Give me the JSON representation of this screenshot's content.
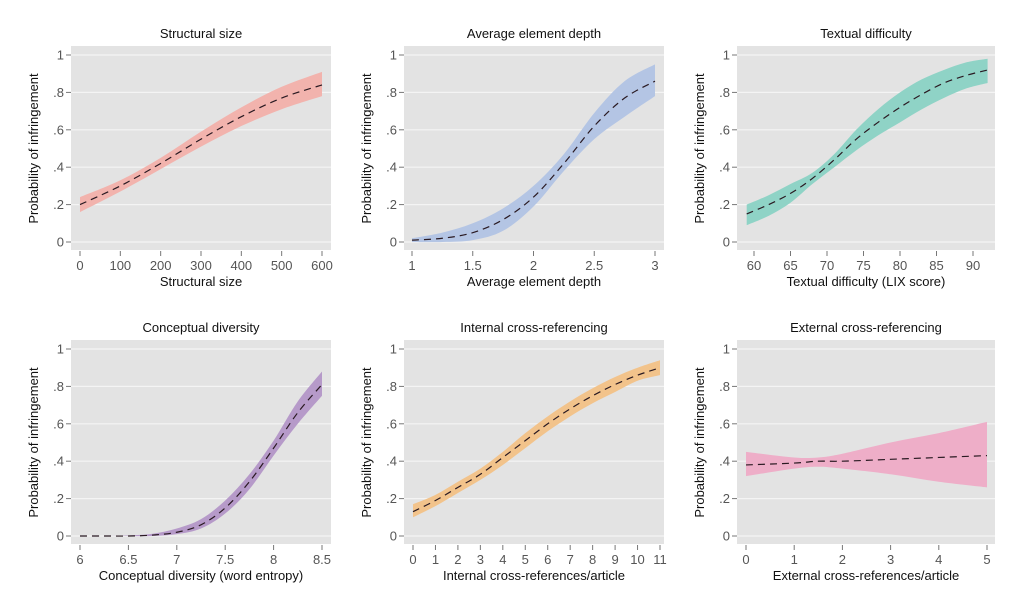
{
  "figure": {
    "ylabel": "Probability of infringement"
  },
  "chart_data": [
    {
      "type": "area",
      "title": "Structural size",
      "xlabel": "Structural size",
      "ylabel": "Probability of infringement",
      "xlim": [
        0,
        600
      ],
      "ylim": [
        0,
        1
      ],
      "xticks": [
        0,
        100,
        200,
        300,
        400,
        500,
        600
      ],
      "xtick_labels": [
        "0",
        "100",
        "200",
        "300",
        "400",
        "500",
        "600"
      ],
      "yticks": [
        0,
        0.2,
        0.4,
        0.6,
        0.8,
        1
      ],
      "ytick_labels": [
        "0",
        ".2",
        ".4",
        ".6",
        ".8",
        "1"
      ],
      "grid": true,
      "band_color": "#f2b3ad",
      "x": [
        0,
        100,
        200,
        300,
        400,
        500,
        600
      ],
      "estimate": [
        0.2,
        0.3,
        0.42,
        0.55,
        0.67,
        0.77,
        0.84
      ],
      "ci_lower": [
        0.16,
        0.27,
        0.39,
        0.51,
        0.62,
        0.71,
        0.78
      ],
      "ci_upper": [
        0.24,
        0.33,
        0.45,
        0.59,
        0.72,
        0.83,
        0.91
      ]
    },
    {
      "type": "area",
      "title": "Average element depth",
      "xlabel": "Average element depth",
      "ylabel": "Probability of infringement",
      "xlim": [
        1,
        3
      ],
      "ylim": [
        0,
        1
      ],
      "xticks": [
        1,
        1.5,
        2,
        2.5,
        3
      ],
      "xtick_labels": [
        "1",
        "1.5",
        "2",
        "2.5",
        "3"
      ],
      "yticks": [
        0,
        0.2,
        0.4,
        0.6,
        0.8,
        1
      ],
      "ytick_labels": [
        "0",
        ".2",
        ".4",
        ".6",
        ".8",
        "1"
      ],
      "grid": true,
      "band_color": "#b4c5e4",
      "x": [
        1,
        1.25,
        1.5,
        1.75,
        2,
        2.25,
        2.5,
        2.75,
        3
      ],
      "estimate": [
        0.01,
        0.02,
        0.05,
        0.12,
        0.24,
        0.42,
        0.62,
        0.77,
        0.86
      ],
      "ci_lower": [
        0.0,
        0.0,
        0.01,
        0.06,
        0.19,
        0.38,
        0.55,
        0.67,
        0.78
      ],
      "ci_upper": [
        0.02,
        0.05,
        0.1,
        0.18,
        0.3,
        0.47,
        0.69,
        0.86,
        0.95
      ]
    },
    {
      "type": "area",
      "title": "Textual difficulty",
      "xlabel": "Textual difficulty (LIX score)",
      "ylabel": "Probability of infringement",
      "xlim": [
        59,
        92
      ],
      "ylim": [
        0,
        1
      ],
      "xticks": [
        60,
        65,
        70,
        75,
        80,
        85,
        90
      ],
      "xtick_labels": [
        "60",
        "65",
        "70",
        "75",
        "80",
        "85",
        "90"
      ],
      "yticks": [
        0,
        0.2,
        0.4,
        0.6,
        0.8,
        1
      ],
      "ytick_labels": [
        "0",
        ".2",
        ".4",
        ".6",
        ".8",
        "1"
      ],
      "grid": true,
      "band_color": "#8fd3c6",
      "x": [
        59,
        62,
        65,
        68,
        71,
        74,
        77,
        80,
        83,
        86,
        89,
        92
      ],
      "estimate": [
        0.15,
        0.2,
        0.26,
        0.34,
        0.44,
        0.55,
        0.64,
        0.72,
        0.79,
        0.85,
        0.89,
        0.92
      ],
      "ci_lower": [
        0.09,
        0.14,
        0.21,
        0.31,
        0.4,
        0.49,
        0.57,
        0.64,
        0.71,
        0.77,
        0.82,
        0.85
      ],
      "ci_upper": [
        0.2,
        0.25,
        0.31,
        0.37,
        0.47,
        0.6,
        0.71,
        0.8,
        0.87,
        0.92,
        0.96,
        0.98
      ]
    },
    {
      "type": "area",
      "title": "Conceptual diversity",
      "xlabel": "Conceptual diversity (word entropy)",
      "ylabel": "Probability of infringement",
      "xlim": [
        6,
        8.5
      ],
      "ylim": [
        0,
        1
      ],
      "xticks": [
        6,
        6.5,
        7,
        7.5,
        8,
        8.5
      ],
      "xtick_labels": [
        "6",
        "6.5",
        "7",
        "7.5",
        "8",
        "8.5"
      ],
      "yticks": [
        0,
        0.2,
        0.4,
        0.6,
        0.8,
        1
      ],
      "ytick_labels": [
        "0",
        ".2",
        ".4",
        ".6",
        ".8",
        "1"
      ],
      "grid": true,
      "band_color": "#b69ac9",
      "x": [
        6,
        6.25,
        6.5,
        6.75,
        7,
        7.25,
        7.5,
        7.75,
        8,
        8.25,
        8.5
      ],
      "estimate": [
        0.0,
        0.0,
        0.0,
        0.005,
        0.02,
        0.06,
        0.15,
        0.29,
        0.47,
        0.66,
        0.81
      ],
      "ci_lower": [
        0.0,
        0.0,
        0.0,
        0.0,
        0.01,
        0.04,
        0.12,
        0.25,
        0.43,
        0.6,
        0.75
      ],
      "ci_upper": [
        0.0,
        0.0,
        0.003,
        0.012,
        0.04,
        0.09,
        0.19,
        0.33,
        0.51,
        0.72,
        0.88
      ]
    },
    {
      "type": "area",
      "title": "Internal cross-referencing",
      "xlabel": "Internal cross-references/article",
      "ylabel": "Probability of infringement",
      "xlim": [
        0,
        11
      ],
      "ylim": [
        0,
        1
      ],
      "xticks": [
        0,
        1,
        2,
        3,
        4,
        5,
        6,
        7,
        8,
        9,
        10,
        11
      ],
      "xtick_labels": [
        "0",
        "1",
        "2",
        "3",
        "4",
        "5",
        "6",
        "7",
        "8",
        "9",
        "10",
        "11"
      ],
      "yticks": [
        0,
        0.2,
        0.4,
        0.6,
        0.8,
        1
      ],
      "ytick_labels": [
        "0",
        ".2",
        ".4",
        ".6",
        ".8",
        "1"
      ],
      "grid": true,
      "band_color": "#f2c38b",
      "x": [
        0,
        1,
        2,
        3,
        4,
        5,
        6,
        7,
        8,
        9,
        10,
        11
      ],
      "estimate": [
        0.13,
        0.19,
        0.26,
        0.33,
        0.42,
        0.51,
        0.6,
        0.68,
        0.75,
        0.81,
        0.86,
        0.9
      ],
      "ci_lower": [
        0.1,
        0.16,
        0.23,
        0.3,
        0.38,
        0.47,
        0.56,
        0.64,
        0.71,
        0.77,
        0.83,
        0.86
      ],
      "ci_upper": [
        0.17,
        0.22,
        0.29,
        0.36,
        0.45,
        0.55,
        0.64,
        0.72,
        0.79,
        0.85,
        0.9,
        0.94
      ]
    },
    {
      "type": "area",
      "title": "External cross-referencing",
      "xlabel": "External cross-references/article",
      "ylabel": "Probability of infringement",
      "xlim": [
        0,
        5
      ],
      "ylim": [
        0,
        1
      ],
      "xticks": [
        0,
        1,
        2,
        3,
        4,
        5
      ],
      "xtick_labels": [
        "0",
        "1",
        "2",
        "3",
        "4",
        "5"
      ],
      "yticks": [
        0,
        0.2,
        0.4,
        0.6,
        0.8,
        1
      ],
      "ytick_labels": [
        "0",
        ".2",
        ".4",
        ".6",
        ".8",
        "1"
      ],
      "grid": true,
      "band_color": "#eeaec8",
      "x": [
        0,
        1,
        1.5,
        2,
        3,
        4,
        5
      ],
      "estimate": [
        0.38,
        0.39,
        0.4,
        0.4,
        0.41,
        0.42,
        0.43
      ],
      "ci_lower": [
        0.32,
        0.36,
        0.37,
        0.36,
        0.33,
        0.29,
        0.26
      ],
      "ci_upper": [
        0.45,
        0.42,
        0.42,
        0.44,
        0.5,
        0.55,
        0.61
      ]
    }
  ]
}
